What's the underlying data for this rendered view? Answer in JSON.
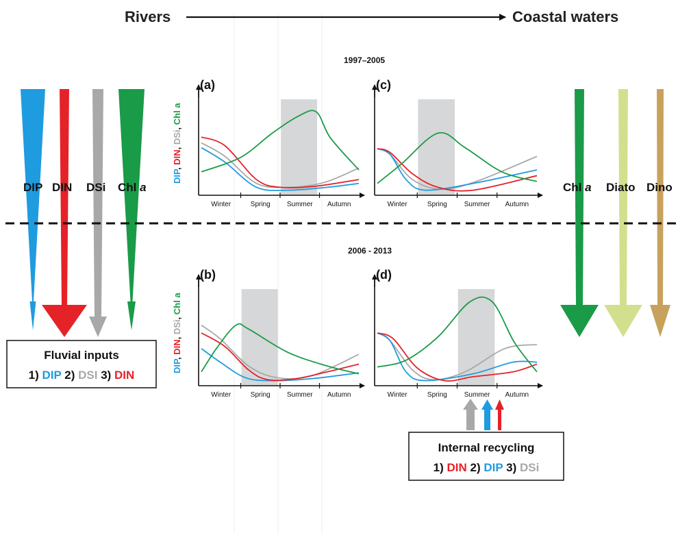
{
  "colors": {
    "dip": "#1f9be0",
    "din": "#e42228",
    "dsi": "#a8a8a8",
    "chl": "#1a9b47",
    "diato": "#d2e08e",
    "dino": "#c8a25c",
    "shade": "#d6d7d8"
  },
  "header": {
    "left": "Rivers",
    "right": "Coastal waters"
  },
  "periods": {
    "top": "1997–2005",
    "bottom": "2006 - 2013"
  },
  "left_arrows": [
    "DIP",
    "DIN",
    "DSi",
    "Chl a"
  ],
  "right_arrows": [
    "Chl a",
    "Diato",
    "Dino"
  ],
  "y_axis_label": {
    "dip": "DIP",
    "din": "DIN",
    "dsi": "DSi",
    "chl": "Chl a",
    "sep": ", "
  },
  "seasons": [
    "Winter",
    "Spring",
    "Summer",
    "Autumn"
  ],
  "panels": [
    {
      "letter": "(a)",
      "shaded_season": "Summer",
      "peak": "Summer"
    },
    {
      "letter": "(c)",
      "shaded_season": "Spring",
      "peak": "Spring"
    },
    {
      "letter": "(b)",
      "shaded_season": "Spring",
      "peak": "Spring"
    },
    {
      "letter": "(d)",
      "shaded_season": "Summer",
      "peak": "Summer"
    }
  ],
  "fluvial_box": {
    "title": "Fluvial inputs",
    "n1": "1) ",
    "i1": "DIP",
    "n2": " 2) ",
    "i2": "DSI",
    "n3": " 3) ",
    "i3": "DIN"
  },
  "recycling_box": {
    "title": "Internal recycling",
    "n1": "1) ",
    "i1": "DIN",
    "n2": " 2) ",
    "i2": "DIP",
    "n3": " 3) ",
    "i3": "DSi"
  }
}
